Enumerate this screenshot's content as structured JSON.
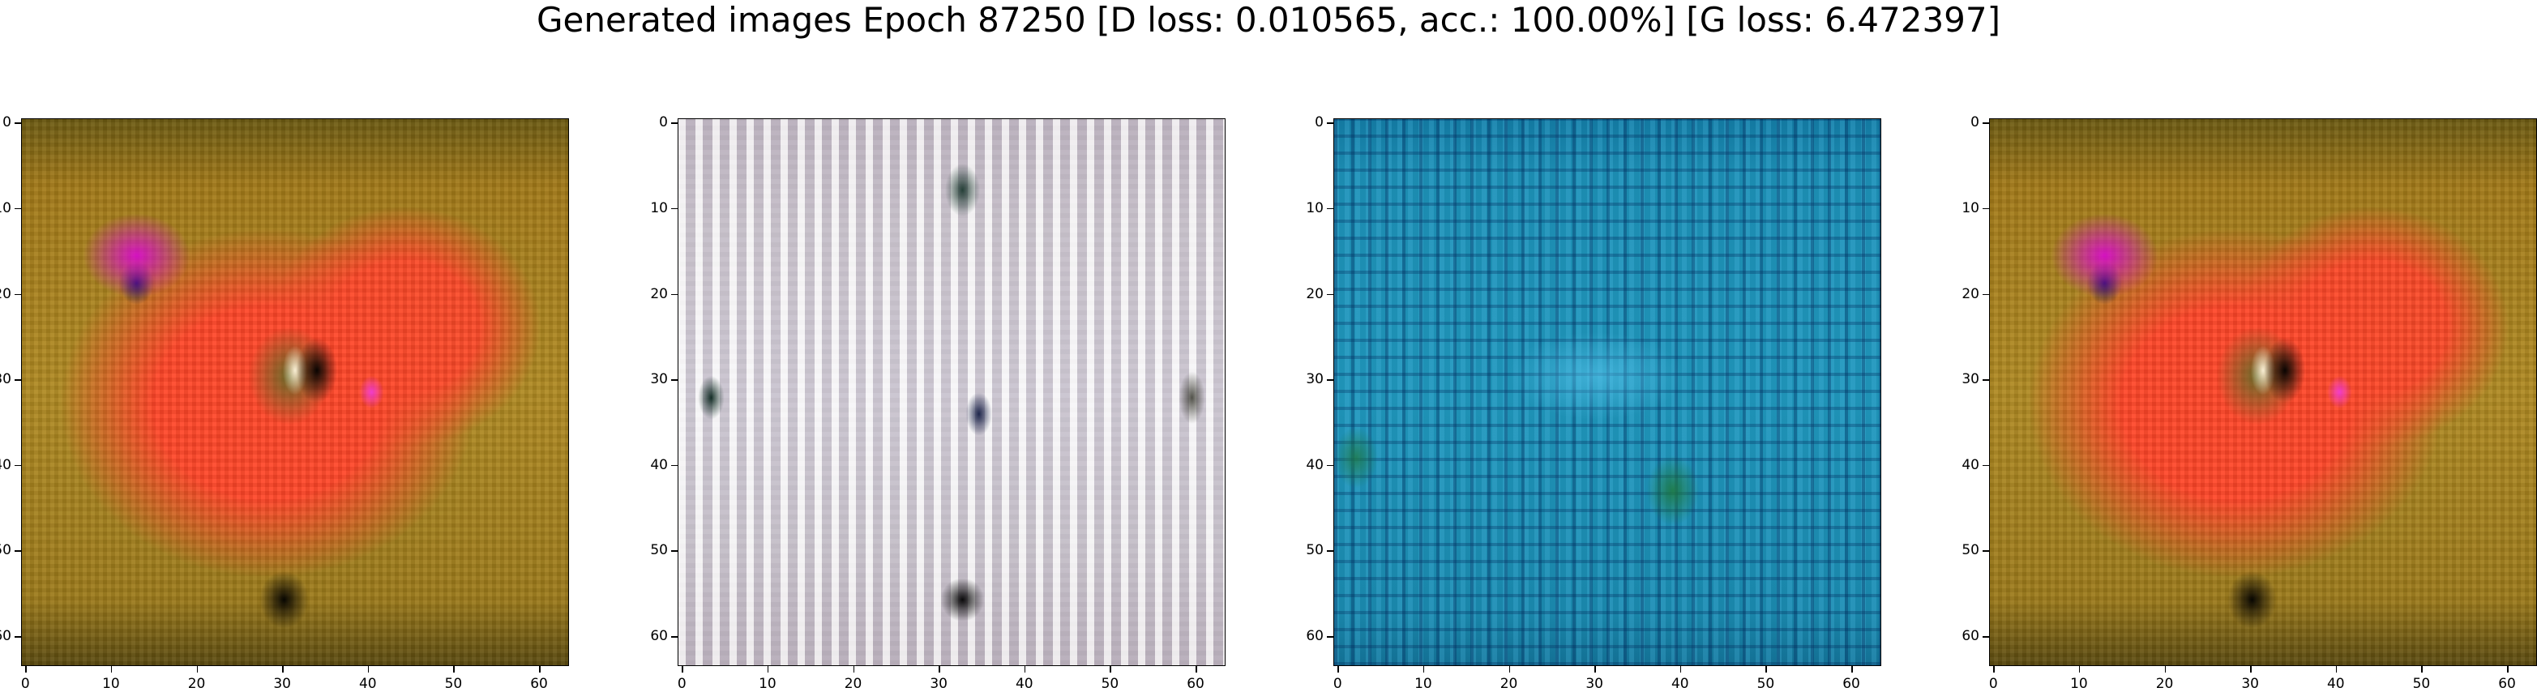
{
  "title": "Generated images Epoch 87250 [D loss: 0.010565, acc.: 100.00%] [G loss: 6.472397]",
  "chart_data": [
    {
      "type": "image",
      "index": 0,
      "style": "orange-red",
      "xlim": [
        -0.5,
        63.5
      ],
      "ylim": [
        63.5,
        -0.5
      ],
      "xticks": [
        "0",
        "10",
        "20",
        "30",
        "40",
        "50",
        "60"
      ],
      "yticks": [
        "0",
        "10",
        "20",
        "30",
        "40",
        "50",
        "60"
      ],
      "grid": false
    },
    {
      "type": "image",
      "index": 1,
      "style": "pale-grey",
      "xlim": [
        -0.5,
        63.5
      ],
      "ylim": [
        63.5,
        -0.5
      ],
      "xticks": [
        "0",
        "10",
        "20",
        "30",
        "40",
        "50",
        "60"
      ],
      "yticks": [
        "0",
        "10",
        "20",
        "30",
        "40",
        "50",
        "60"
      ],
      "grid": false
    },
    {
      "type": "image",
      "index": 2,
      "style": "teal-blue",
      "xlim": [
        -0.5,
        63.5
      ],
      "ylim": [
        63.5,
        -0.5
      ],
      "xticks": [
        "0",
        "10",
        "20",
        "30",
        "40",
        "50",
        "60"
      ],
      "yticks": [
        "0",
        "10",
        "20",
        "30",
        "40",
        "50",
        "60"
      ],
      "grid": false
    },
    {
      "type": "image",
      "index": 3,
      "style": "orange-red",
      "xlim": [
        -0.5,
        63.5
      ],
      "ylim": [
        63.5,
        -0.5
      ],
      "xticks": [
        "0",
        "10",
        "20",
        "30",
        "40",
        "50",
        "60"
      ],
      "yticks": [
        "0",
        "10",
        "20",
        "30",
        "40",
        "50",
        "60"
      ],
      "grid": false
    }
  ]
}
